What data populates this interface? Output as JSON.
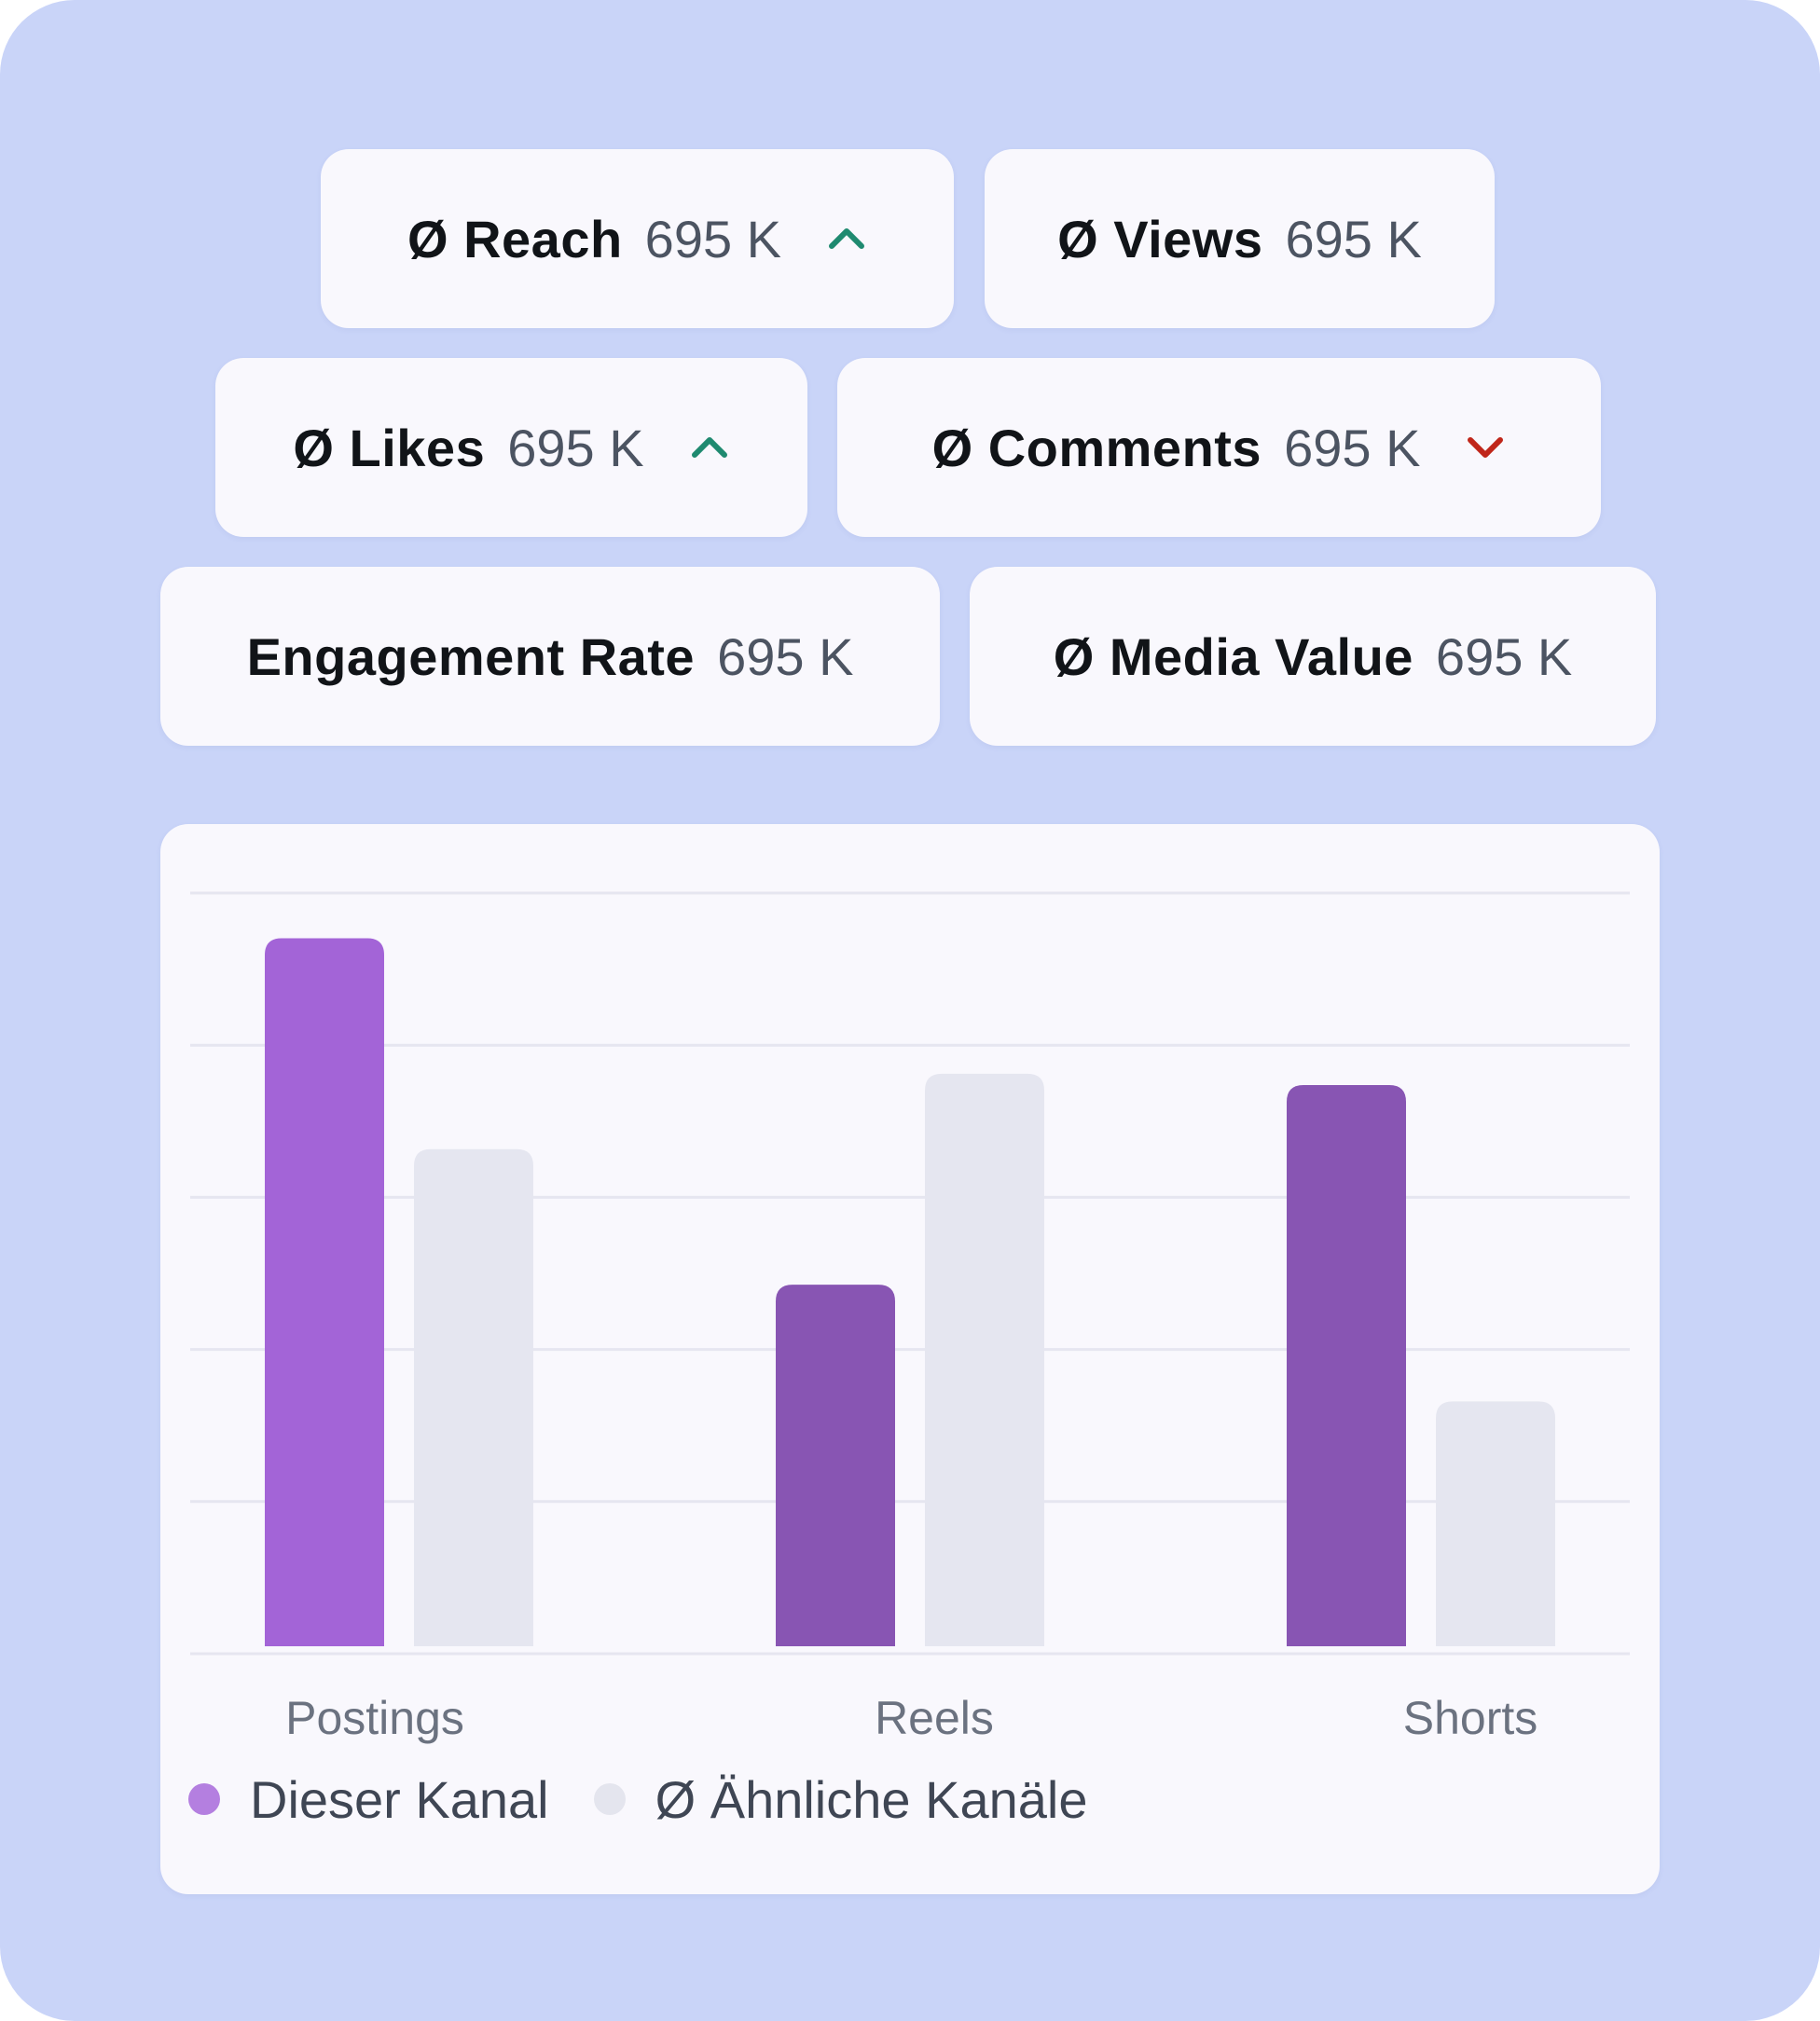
{
  "metrics": [
    {
      "label": "Ø Reach",
      "value": "695 K",
      "trend": "up"
    },
    {
      "label": "Ø Views",
      "value": "695 K",
      "trend": "none"
    },
    {
      "label": "Ø Likes",
      "value": "695 K",
      "trend": "up"
    },
    {
      "label": "Ø Comments",
      "value": "695 K",
      "trend": "down"
    },
    {
      "label": "Engagement Rate",
      "value": "695 K",
      "trend": "none"
    },
    {
      "label": "Ø Media Value",
      "value": "695 K",
      "trend": "none"
    }
  ],
  "colors": {
    "background": "#c9d4f8",
    "card": "#f9f8fd",
    "trend_up": "#1f8a70",
    "trend_down": "#c0261a"
  },
  "chart_data": {
    "type": "bar",
    "categories": [
      "Postings",
      "Reels",
      "Shorts"
    ],
    "series": [
      {
        "name": "Dieser Kanal",
        "values": [
          94,
          48,
          74.5
        ],
        "colors": [
          "#a364d7",
          "#8855b3",
          "#8855b3"
        ]
      },
      {
        "name": "Ø Ähnliche Kanäle",
        "values": [
          66,
          76,
          32.5
        ],
        "colors": [
          "#e5e6f0",
          "#e5e6f0",
          "#e5e6f0"
        ]
      }
    ],
    "ylim": [
      0,
      100
    ],
    "gridlines": 5,
    "grid": true,
    "legend_position": "bottom-left",
    "legend_colors": [
      "#b47fe0",
      "#e4e5ee"
    ],
    "title": "",
    "xlabel": "",
    "ylabel": ""
  }
}
